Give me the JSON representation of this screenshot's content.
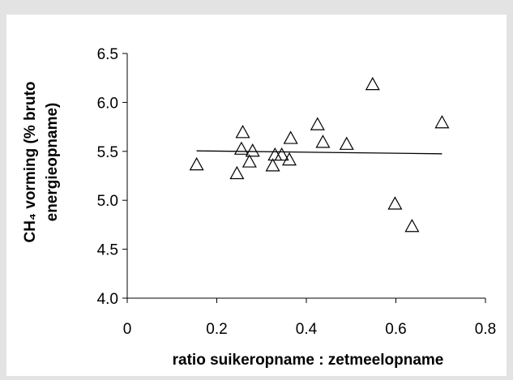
{
  "chart_data": {
    "type": "scatter",
    "title": "",
    "xlabel": "ratio suikeropname : zetmeelopname",
    "ylabel_line1": "CH₄ vorming (% bruto",
    "ylabel_line2": "energieopname)",
    "xlim": [
      0,
      0.8
    ],
    "ylim": [
      4.0,
      6.5
    ],
    "x_ticks": [
      "0",
      "0.2",
      "0.4",
      "0.6",
      "0.8"
    ],
    "y_ticks": [
      "4.0",
      "4.5",
      "5.0",
      "5.5",
      "6.0",
      "6.5"
    ],
    "marker": "open-triangle",
    "grid": false,
    "legend": "none",
    "series": [
      {
        "points": [
          {
            "x": 0.155,
            "y": 5.36
          },
          {
            "x": 0.245,
            "y": 5.27
          },
          {
            "x": 0.255,
            "y": 5.52
          },
          {
            "x": 0.258,
            "y": 5.69
          },
          {
            "x": 0.273,
            "y": 5.39
          },
          {
            "x": 0.28,
            "y": 5.5
          },
          {
            "x": 0.325,
            "y": 5.35
          },
          {
            "x": 0.33,
            "y": 5.46
          },
          {
            "x": 0.345,
            "y": 5.46
          },
          {
            "x": 0.362,
            "y": 5.41
          },
          {
            "x": 0.365,
            "y": 5.63
          },
          {
            "x": 0.425,
            "y": 5.77
          },
          {
            "x": 0.437,
            "y": 5.59
          },
          {
            "x": 0.49,
            "y": 5.57
          },
          {
            "x": 0.548,
            "y": 6.18
          },
          {
            "x": 0.598,
            "y": 4.96
          },
          {
            "x": 0.636,
            "y": 4.73
          },
          {
            "x": 0.703,
            "y": 5.79
          }
        ]
      }
    ],
    "trendline": {
      "x": [
        0.155,
        0.703
      ],
      "y": [
        5.505,
        5.475
      ]
    },
    "colors": {
      "background": "#e3e3e3",
      "plot_background": "#ffffff",
      "ink": "#000000"
    }
  }
}
